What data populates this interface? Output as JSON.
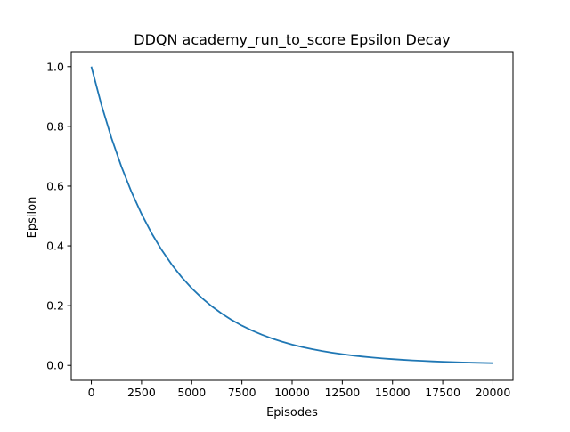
{
  "chart_data": {
    "type": "line",
    "title": "DDQN academy_run_to_score Epsilon Decay",
    "xlabel": "Episodes",
    "ylabel": "Epsilon",
    "xlim": [
      -1000,
      21000
    ],
    "ylim": [
      -0.05,
      1.05
    ],
    "x_ticks": [
      0,
      2500,
      5000,
      7500,
      10000,
      12500,
      15000,
      17500,
      20000
    ],
    "x_tick_labels": [
      "0",
      "2500",
      "5000",
      "7500",
      "10000",
      "12500",
      "15000",
      "17500",
      "20000"
    ],
    "y_ticks": [
      0.0,
      0.2,
      0.4,
      0.6,
      0.8,
      1.0
    ],
    "y_tick_labels": [
      "0.0",
      "0.2",
      "0.4",
      "0.6",
      "0.8",
      "1.0"
    ],
    "grid": false,
    "line_color": "#1f77b4",
    "series": [
      {
        "x": [
          0,
          500,
          1000,
          1500,
          2000,
          2500,
          3000,
          3500,
          4000,
          4500,
          5000,
          5500,
          6000,
          6500,
          7000,
          7500,
          8000,
          8500,
          9000,
          9500,
          10000,
          10500,
          11000,
          11500,
          12000,
          12500,
          13000,
          13500,
          14000,
          14500,
          15000,
          15500,
          16000,
          16500,
          17000,
          17500,
          18000,
          18500,
          19000,
          19500,
          20000
        ],
        "values": [
          1.0,
          0.8726,
          0.7616,
          0.6648,
          0.5804,
          0.5068,
          0.4426,
          0.3866,
          0.3378,
          0.2953,
          0.2582,
          0.2259,
          0.1977,
          0.1731,
          0.1517,
          0.133,
          0.1167,
          0.1025,
          0.09,
          0.0792,
          0.0697,
          0.0615,
          0.0543,
          0.0479,
          0.0424,
          0.0376,
          0.0333,
          0.0296,
          0.0263,
          0.0235,
          0.021,
          0.0188,
          0.0168,
          0.0151,
          0.0136,
          0.0123,
          0.0111,
          0.01,
          0.0091,
          0.0083,
          0.0075
        ]
      }
    ]
  }
}
